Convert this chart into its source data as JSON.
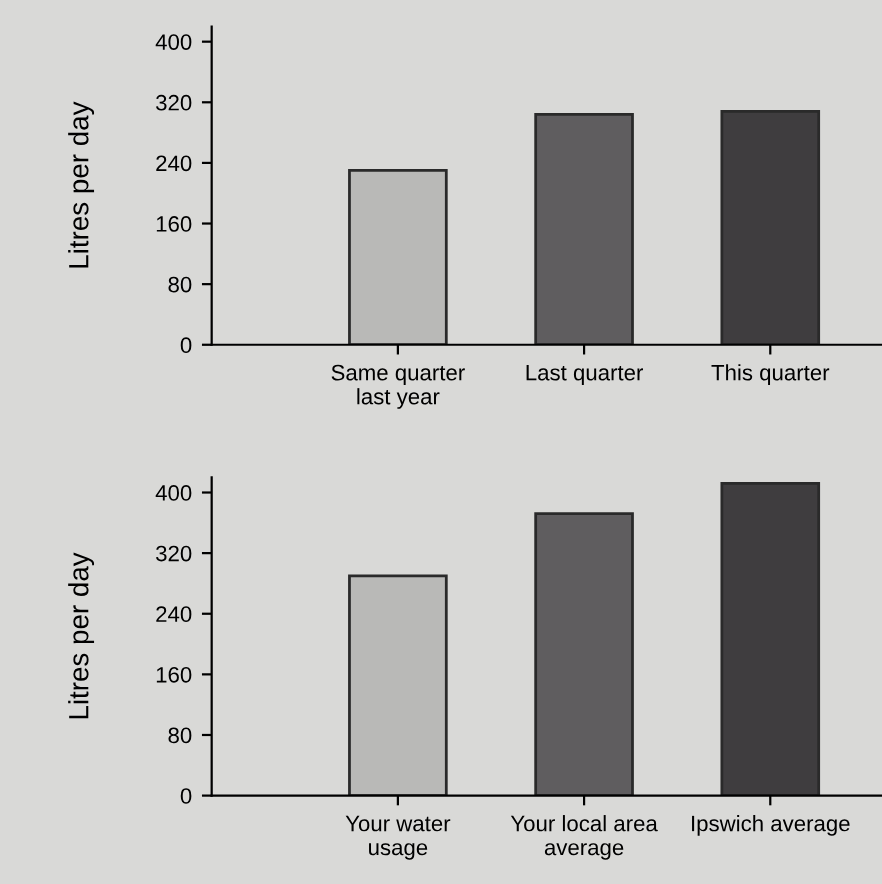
{
  "chart_data": [
    {
      "type": "bar",
      "ylabel": "Litres per day",
      "categories": [
        "Same quarter\nlast year",
        "Last quarter",
        "This quarter"
      ],
      "values": [
        230,
        304,
        308
      ],
      "colors": [
        "#b9b9b7",
        "#5f5d5f",
        "#3f3d3f"
      ],
      "ylim": [
        0,
        420
      ],
      "yticks": [
        0,
        80,
        160,
        240,
        320,
        400
      ],
      "grid": false
    },
    {
      "type": "bar",
      "ylabel": "Litres per day",
      "categories": [
        "Your water\nusage",
        "Your local area\naverage",
        "Ipswich average"
      ],
      "values": [
        290,
        372,
        412
      ],
      "colors": [
        "#b9b9b7",
        "#5f5d5f",
        "#3f3d3f"
      ],
      "ylim": [
        0,
        420
      ],
      "yticks": [
        0,
        80,
        160,
        240,
        320,
        400
      ],
      "grid": false
    }
  ]
}
